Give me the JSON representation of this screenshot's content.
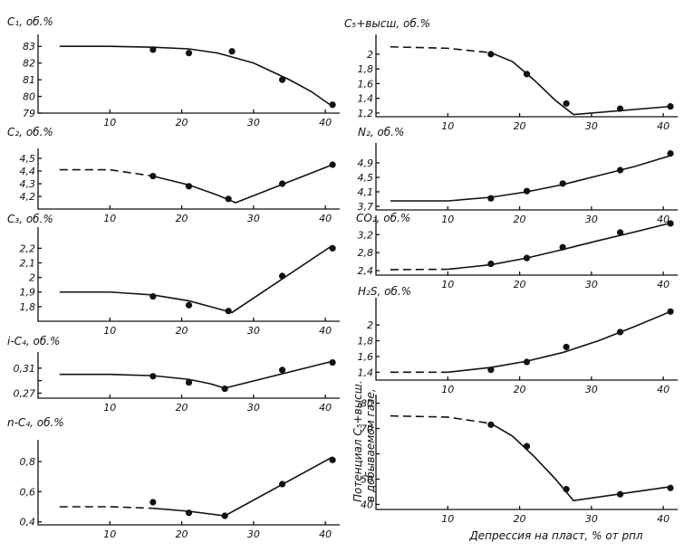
{
  "chart_data": [
    {
      "type": "scatter",
      "ylabel": "C₁, об.%",
      "xlim": [
        0,
        42
      ],
      "ylim": [
        79,
        83.5
      ],
      "yticks": [
        83,
        82,
        81,
        80,
        79
      ],
      "xticks": [
        10,
        20,
        30,
        40
      ],
      "points": {
        "x": [
          16,
          21,
          27,
          34,
          41
        ],
        "y": [
          82.8,
          82.6,
          82.7,
          81.0,
          79.5
        ]
      },
      "fit": {
        "x": [
          3,
          10,
          16,
          21,
          25,
          30,
          35,
          38,
          41
        ],
        "y": [
          83.0,
          83.0,
          82.95,
          82.85,
          82.6,
          82.0,
          81.0,
          80.3,
          79.4
        ]
      },
      "dash_to_x": 0
    },
    {
      "type": "scatter",
      "ylabel": "C₂, об.%",
      "xlim": [
        0,
        42
      ],
      "ylim": [
        4.1,
        4.55
      ],
      "yticks": [
        4.5,
        4.4,
        4.3,
        4.2
      ],
      "xticks": [
        10,
        20,
        30,
        40
      ],
      "points": {
        "x": [
          16,
          21,
          26.5,
          34,
          41
        ],
        "y": [
          4.36,
          4.28,
          4.18,
          4.3,
          4.45
        ]
      },
      "fit": {
        "x": [
          3,
          10,
          16,
          21,
          25,
          27.5,
          41
        ],
        "y": [
          4.41,
          4.41,
          4.36,
          4.29,
          4.21,
          4.15,
          4.45
        ]
      },
      "dash_to_x": 13
    },
    {
      "type": "scatter",
      "ylabel": "C₃, об.%",
      "xlim": [
        0,
        42
      ],
      "ylim": [
        1.7,
        2.32
      ],
      "yticks": [
        2.2,
        2.1,
        2.0,
        1.9,
        1.8
      ],
      "xticks": [
        10,
        20,
        30,
        40
      ],
      "points": {
        "x": [
          16,
          21,
          26.5,
          34,
          41
        ],
        "y": [
          1.87,
          1.81,
          1.77,
          2.01,
          2.2
        ]
      },
      "fit": {
        "x": [
          3,
          10,
          16,
          21,
          24,
          27,
          41
        ],
        "y": [
          1.9,
          1.9,
          1.88,
          1.84,
          1.8,
          1.76,
          2.22
        ]
      },
      "dash_to_x": 0
    },
    {
      "type": "scatter",
      "ylabel": "i-C₄, об.%",
      "xlim": [
        0,
        42
      ],
      "ylim": [
        0.262,
        0.33
      ],
      "yticks": [
        0.31,
        0.29,
        0.27
      ],
      "yticklabels": [
        "0,31",
        "",
        "0,27"
      ],
      "xticks": [
        10,
        20,
        30,
        40
      ],
      "points": {
        "x": [
          16,
          21,
          26,
          34,
          41
        ],
        "y": [
          0.297,
          0.287,
          0.277,
          0.307,
          0.319
        ]
      },
      "fit": {
        "x": [
          3,
          10,
          16,
          21,
          24,
          26,
          41
        ],
        "y": [
          0.3,
          0.3,
          0.298,
          0.292,
          0.285,
          0.278,
          0.321
        ]
      },
      "dash_to_x": 0
    },
    {
      "type": "scatter",
      "ylabel": "n-C₄, об.%",
      "xlim": [
        0,
        42
      ],
      "ylim": [
        0.38,
        0.92
      ],
      "yticks": [
        0.8,
        0.6,
        0.4
      ],
      "xticks": [
        10,
        20,
        30,
        40
      ],
      "points": {
        "x": [
          16,
          21,
          26,
          34,
          41
        ],
        "y": [
          0.53,
          0.46,
          0.44,
          0.65,
          0.81
        ]
      },
      "fit": {
        "x": [
          3,
          10,
          16,
          21,
          26,
          41
        ],
        "y": [
          0.5,
          0.5,
          0.49,
          0.47,
          0.44,
          0.83
        ]
      },
      "dash_to_x": 13
    },
    {
      "type": "scatter",
      "ylabel": "C₅+высш, об.%",
      "xlim": [
        0,
        42
      ],
      "ylim": [
        1.15,
        2.22
      ],
      "yticks": [
        2.0,
        1.8,
        1.6,
        1.4,
        1.2
      ],
      "xticks": [
        10,
        20,
        30,
        40
      ],
      "points": {
        "x": [
          16,
          21,
          26.5,
          34,
          41
        ],
        "y": [
          2.0,
          1.73,
          1.33,
          1.26,
          1.29
        ]
      },
      "fit": {
        "x": [
          2,
          10,
          16,
          19,
          22,
          25,
          27.5,
          41
        ],
        "y": [
          2.1,
          2.08,
          2.02,
          1.9,
          1.65,
          1.37,
          1.18,
          1.29
        ]
      },
      "dash_to_x": 13
    },
    {
      "type": "scatter",
      "ylabel": "N₂, об.%",
      "xlim": [
        0,
        42
      ],
      "ylim": [
        3.6,
        5.35
      ],
      "yticks": [
        4.9,
        4.5,
        4.1,
        3.7
      ],
      "xticks": [
        10,
        20,
        30,
        40
      ],
      "points": {
        "x": [
          16,
          21,
          26,
          34,
          41
        ],
        "y": [
          3.92,
          4.12,
          4.33,
          4.7,
          5.16
        ]
      },
      "fit": {
        "x": [
          2,
          10,
          16,
          21,
          26,
          31,
          36,
          41
        ],
        "y": [
          3.85,
          3.85,
          3.95,
          4.1,
          4.3,
          4.55,
          4.8,
          5.1
        ]
      },
      "dash_to_x": 0
    },
    {
      "type": "scatter",
      "ylabel": "CO₂, об.%",
      "xlim": [
        0,
        42
      ],
      "ylim": [
        2.3,
        3.55
      ],
      "yticks": [
        3.2,
        2.8,
        2.4
      ],
      "xticks": [
        10,
        20,
        30,
        40
      ],
      "points": {
        "x": [
          16,
          21,
          26,
          34,
          41
        ],
        "y": [
          2.55,
          2.68,
          2.92,
          3.25,
          3.45
        ]
      },
      "fit": {
        "x": [
          2,
          10,
          16,
          21,
          26,
          31,
          36,
          41
        ],
        "y": [
          2.42,
          2.43,
          2.53,
          2.68,
          2.87,
          3.07,
          3.26,
          3.46
        ]
      },
      "dash_to_x": 10
    },
    {
      "type": "scatter",
      "ylabel": "H₂S, об.%",
      "xlim": [
        0,
        42
      ],
      "ylim": [
        1.3,
        2.3
      ],
      "yticks": [
        2.0,
        1.8,
        1.6,
        1.4
      ],
      "xticks": [
        10,
        20,
        30,
        40
      ],
      "points": {
        "x": [
          16,
          21,
          26.5,
          34,
          41
        ],
        "y": [
          1.43,
          1.53,
          1.72,
          1.91,
          2.17
        ]
      },
      "fit": {
        "x": [
          2,
          10,
          16,
          21,
          26,
          31,
          36,
          41
        ],
        "y": [
          1.4,
          1.4,
          1.46,
          1.54,
          1.65,
          1.8,
          1.98,
          2.17
        ]
      },
      "dash_to_x": 10
    },
    {
      "type": "scatter",
      "ylabel_lines": [
        "Потенциал C₅+высш.",
        "в добываемом газе,"
      ],
      "xlabel": "Депрессия на пласт, % от pпл",
      "xlim": [
        0,
        42
      ],
      "ylim": [
        38,
        82
      ],
      "yticks": [
        80,
        70,
        60,
        50,
        40
      ],
      "yticklabels": [
        "80",
        "70",
        "",
        "50",
        "40"
      ],
      "xticks": [
        10,
        20,
        30,
        40
      ],
      "points": {
        "x": [
          16,
          21,
          26.5,
          34,
          41
        ],
        "y": [
          71.5,
          63,
          46,
          44,
          46.5
        ]
      },
      "fit": {
        "x": [
          2,
          10,
          16,
          19,
          22,
          25,
          27.5,
          41
        ],
        "y": [
          75,
          74.5,
          72,
          67,
          59,
          50,
          41.5,
          47
        ]
      },
      "dash_to_x": 13
    }
  ]
}
